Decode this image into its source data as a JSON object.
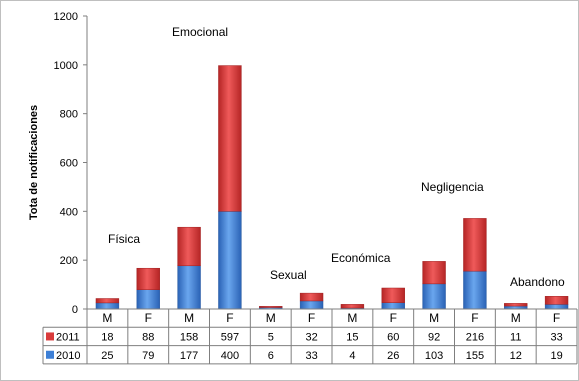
{
  "chart_data": {
    "type": "bar",
    "stacked": true,
    "ylabel": "Tota de notificaciones",
    "ylim": [
      0,
      1200
    ],
    "yticks": [
      0,
      200,
      400,
      600,
      800,
      1000,
      1200
    ],
    "grid": false,
    "categories": [
      "M",
      "F",
      "M",
      "F",
      "M",
      "F",
      "M",
      "F",
      "M",
      "F",
      "M",
      "F"
    ],
    "groups": [
      {
        "label": "Física",
        "span": [
          0,
          1
        ]
      },
      {
        "label": "Emocional",
        "span": [
          2,
          3
        ]
      },
      {
        "label": "Sexual",
        "span": [
          4,
          5
        ]
      },
      {
        "label": "Económica",
        "span": [
          6,
          7
        ]
      },
      {
        "label": "Negligencia",
        "span": [
          8,
          9
        ]
      },
      {
        "label": "Abandono",
        "span": [
          10,
          11
        ]
      }
    ],
    "series": [
      {
        "name": "2011",
        "color": "#d93b3b",
        "values": [
          18,
          88,
          158,
          597,
          5,
          32,
          15,
          60,
          92,
          216,
          11,
          33
        ]
      },
      {
        "name": "2010",
        "color": "#3d7fd6",
        "values": [
          25,
          79,
          177,
          400,
          6,
          33,
          4,
          26,
          103,
          155,
          12,
          19
        ]
      }
    ],
    "legend_position": "data-table"
  }
}
